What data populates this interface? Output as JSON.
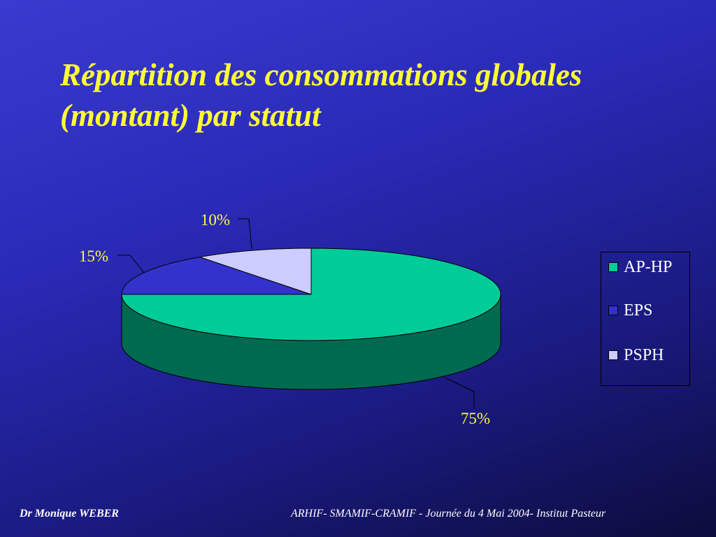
{
  "slide": {
    "title_line1": "Répartition des consommations globales",
    "title_line2": "(montant) par statut"
  },
  "footer": {
    "left": "Dr Monique WEBER",
    "right": "ARHIF- SMAMIF-CRAMIF - Journée du 4 Mai 2004- Institut Pasteur"
  },
  "chart_data": {
    "type": "pie",
    "title": "Répartition des consommations globales (montant) par statut",
    "labels": [
      "AP-HP",
      "EPS",
      "PSPH"
    ],
    "values": [
      75,
      15,
      10
    ],
    "data_labels": [
      "75%",
      "15%",
      "10%"
    ],
    "colors": [
      "#00cc99",
      "#3333cc",
      "#ccccff"
    ],
    "side_colors": [
      "#006a50",
      "#1a1a70",
      "#8a8ab0"
    ],
    "legend_position": "right",
    "three_d": true
  }
}
